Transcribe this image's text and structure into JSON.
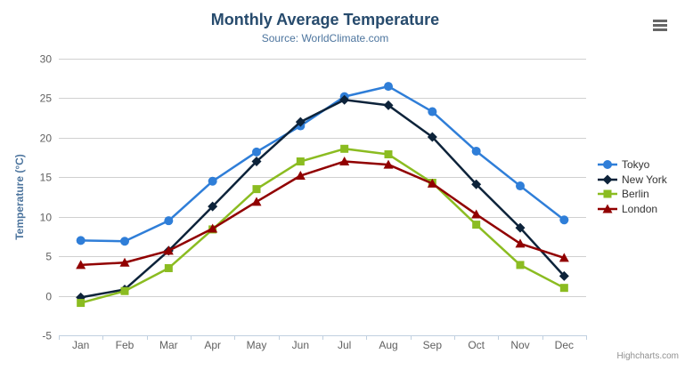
{
  "chart": {
    "credits_label": "Highcharts.com",
    "export_menu_icon": "hamburger-icon",
    "background_color": "#ffffff",
    "title_color": "#274b6d",
    "subtitle_color": "#4d759e",
    "axis_label_color": "#606060",
    "axis_title_color": "#4d759e",
    "grid_color": "#d0d0d0",
    "axis_line_color": "#c0d0e0",
    "legend_text_color": "#333333"
  },
  "chart_data": {
    "type": "line",
    "title": "Monthly Average Temperature",
    "subtitle": "Source: WorldClimate.com",
    "categories": [
      "Jan",
      "Feb",
      "Mar",
      "Apr",
      "May",
      "Jun",
      "Jul",
      "Aug",
      "Sep",
      "Oct",
      "Nov",
      "Dec"
    ],
    "series": [
      {
        "name": "Tokyo",
        "color": "#2f7ed8",
        "marker": "circle",
        "values": [
          7.0,
          6.9,
          9.5,
          14.5,
          18.2,
          21.5,
          25.2,
          26.5,
          23.3,
          18.3,
          13.9,
          9.6
        ]
      },
      {
        "name": "New York",
        "color": "#0d233a",
        "marker": "diamond",
        "values": [
          -0.2,
          0.8,
          5.7,
          11.3,
          17.0,
          22.0,
          24.8,
          24.1,
          20.1,
          14.1,
          8.6,
          2.5
        ]
      },
      {
        "name": "Berlin",
        "color": "#8bbc21",
        "marker": "square",
        "values": [
          -0.9,
          0.6,
          3.5,
          8.4,
          13.5,
          17.0,
          18.6,
          17.9,
          14.3,
          9.0,
          3.9,
          1.0
        ]
      },
      {
        "name": "London",
        "color": "#910000",
        "marker": "triangle",
        "values": [
          3.9,
          4.2,
          5.7,
          8.5,
          11.9,
          15.2,
          17.0,
          16.6,
          14.2,
          10.3,
          6.6,
          4.8
        ]
      }
    ],
    "xlabel": "",
    "ylabel": "Temperature (°C)",
    "ylim": [
      -5,
      30
    ],
    "ytick_step": 5,
    "grid": true,
    "legend_position": "right"
  }
}
